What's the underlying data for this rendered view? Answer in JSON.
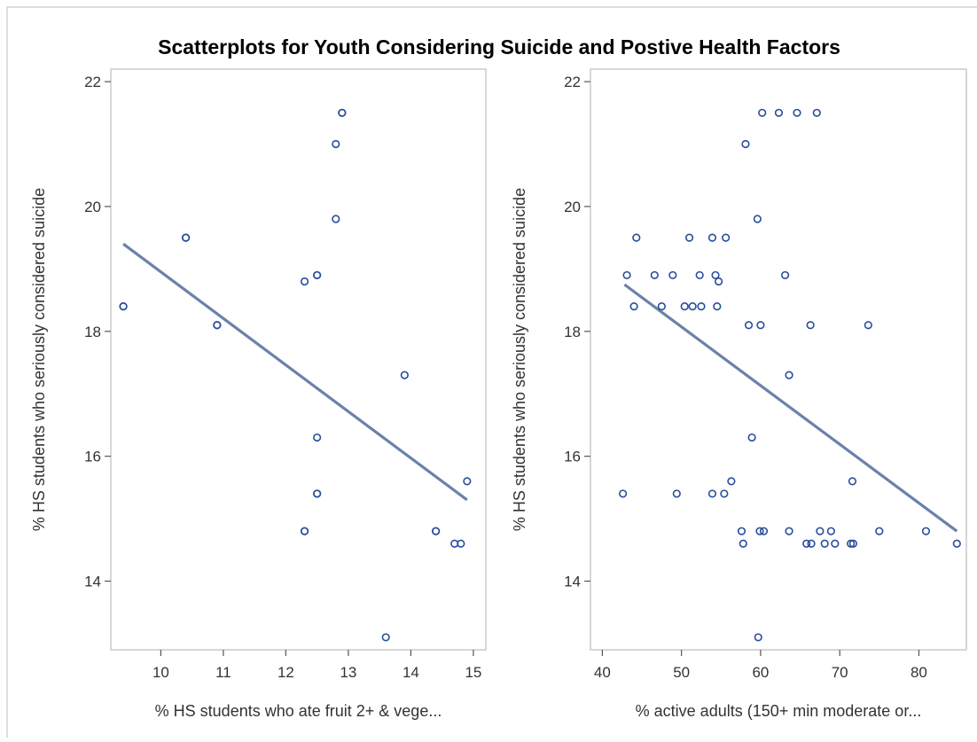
{
  "figure": {
    "title": "Scatterplots for Youth Considering Suicide and Postive Health Factors"
  },
  "chart_data": [
    {
      "type": "scatter",
      "title": "",
      "xlabel": "% HS students who ate fruit 2+ & vege...",
      "ylabel": "% HS students who seriously considered suicide",
      "xlim": [
        9.2,
        15.2
      ],
      "ylim": [
        12.9,
        22.2
      ],
      "xticks": [
        10,
        11,
        12,
        13,
        14,
        15
      ],
      "yticks": [
        14,
        16,
        18,
        20,
        22
      ],
      "grid": false,
      "legend": "none",
      "points": [
        {
          "x": 9.4,
          "y": 18.4
        },
        {
          "x": 9.4,
          "y": 18.4
        },
        {
          "x": 10.4,
          "y": 19.5
        },
        {
          "x": 10.4,
          "y": 19.5
        },
        {
          "x": 10.9,
          "y": 18.1
        },
        {
          "x": 10.9,
          "y": 18.1
        },
        {
          "x": 12.3,
          "y": 18.8
        },
        {
          "x": 12.5,
          "y": 18.9
        },
        {
          "x": 12.5,
          "y": 18.9
        },
        {
          "x": 12.8,
          "y": 21.0
        },
        {
          "x": 12.9,
          "y": 21.5
        },
        {
          "x": 12.9,
          "y": 21.5
        },
        {
          "x": 12.8,
          "y": 19.8
        },
        {
          "x": 13.9,
          "y": 17.3
        },
        {
          "x": 12.5,
          "y": 16.3
        },
        {
          "x": 12.5,
          "y": 15.4
        },
        {
          "x": 12.5,
          "y": 15.4
        },
        {
          "x": 12.3,
          "y": 14.8
        },
        {
          "x": 12.3,
          "y": 14.8
        },
        {
          "x": 14.4,
          "y": 14.8
        },
        {
          "x": 14.4,
          "y": 14.8
        },
        {
          "x": 14.7,
          "y": 14.6
        },
        {
          "x": 14.8,
          "y": 14.6
        },
        {
          "x": 14.9,
          "y": 15.6
        },
        {
          "x": 13.6,
          "y": 13.1
        }
      ],
      "fit_line": {
        "x": [
          9.4,
          14.9
        ],
        "y": [
          19.4,
          15.3
        ]
      }
    },
    {
      "type": "scatter",
      "title": "",
      "xlabel": "% active adults (150+ min moderate or...",
      "ylabel": "% HS students who seriously considered suicide",
      "xlim": [
        38.5,
        86
      ],
      "ylim": [
        12.9,
        22.2
      ],
      "xticks": [
        40,
        50,
        60,
        70,
        80
      ],
      "yticks": [
        14,
        16,
        18,
        20,
        22
      ],
      "grid": false,
      "legend": "none",
      "points": [
        {
          "x": 60.2,
          "y": 21.5
        },
        {
          "x": 62.3,
          "y": 21.5
        },
        {
          "x": 64.6,
          "y": 21.5
        },
        {
          "x": 67.1,
          "y": 21.5
        },
        {
          "x": 58.1,
          "y": 21.0
        },
        {
          "x": 59.6,
          "y": 19.8
        },
        {
          "x": 44.3,
          "y": 19.5
        },
        {
          "x": 51.0,
          "y": 19.5
        },
        {
          "x": 53.9,
          "y": 19.5
        },
        {
          "x": 55.6,
          "y": 19.5
        },
        {
          "x": 43.1,
          "y": 18.9
        },
        {
          "x": 46.6,
          "y": 18.9
        },
        {
          "x": 48.9,
          "y": 18.9
        },
        {
          "x": 52.3,
          "y": 18.9
        },
        {
          "x": 54.3,
          "y": 18.9
        },
        {
          "x": 63.1,
          "y": 18.9
        },
        {
          "x": 54.7,
          "y": 18.8
        },
        {
          "x": 44.0,
          "y": 18.4
        },
        {
          "x": 47.5,
          "y": 18.4
        },
        {
          "x": 50.4,
          "y": 18.4
        },
        {
          "x": 51.4,
          "y": 18.4
        },
        {
          "x": 52.5,
          "y": 18.4
        },
        {
          "x": 54.5,
          "y": 18.4
        },
        {
          "x": 58.5,
          "y": 18.1
        },
        {
          "x": 60.0,
          "y": 18.1
        },
        {
          "x": 66.3,
          "y": 18.1
        },
        {
          "x": 73.6,
          "y": 18.1
        },
        {
          "x": 63.6,
          "y": 17.3
        },
        {
          "x": 58.9,
          "y": 16.3
        },
        {
          "x": 56.3,
          "y": 15.6
        },
        {
          "x": 71.6,
          "y": 15.6
        },
        {
          "x": 42.6,
          "y": 15.4
        },
        {
          "x": 49.4,
          "y": 15.4
        },
        {
          "x": 53.9,
          "y": 15.4
        },
        {
          "x": 55.4,
          "y": 15.4
        },
        {
          "x": 57.6,
          "y": 14.8
        },
        {
          "x": 59.9,
          "y": 14.8
        },
        {
          "x": 60.4,
          "y": 14.8
        },
        {
          "x": 63.6,
          "y": 14.8
        },
        {
          "x": 67.5,
          "y": 14.8
        },
        {
          "x": 68.9,
          "y": 14.8
        },
        {
          "x": 75.0,
          "y": 14.8
        },
        {
          "x": 80.9,
          "y": 14.8
        },
        {
          "x": 57.8,
          "y": 14.6
        },
        {
          "x": 65.8,
          "y": 14.6
        },
        {
          "x": 66.4,
          "y": 14.6
        },
        {
          "x": 68.1,
          "y": 14.6
        },
        {
          "x": 69.4,
          "y": 14.6
        },
        {
          "x": 71.4,
          "y": 14.6
        },
        {
          "x": 71.7,
          "y": 14.6
        },
        {
          "x": 84.8,
          "y": 14.6
        },
        {
          "x": 59.7,
          "y": 13.1
        }
      ],
      "fit_line": {
        "x": [
          42.8,
          84.8
        ],
        "y": [
          18.75,
          14.8
        ]
      }
    }
  ]
}
